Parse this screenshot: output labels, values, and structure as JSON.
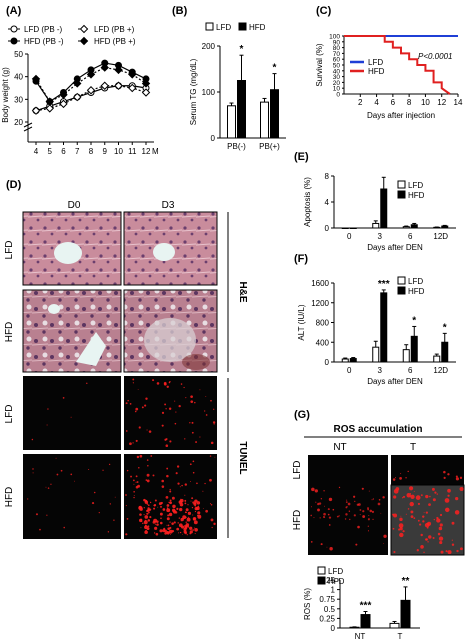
{
  "panels": {
    "A": {
      "label": "(A)"
    },
    "B": {
      "label": "(B)"
    },
    "C": {
      "label": "(C)"
    },
    "D": {
      "label": "(D)"
    },
    "E": {
      "label": "(E)"
    },
    "F": {
      "label": "(F)"
    },
    "G": {
      "label": "(G)"
    }
  },
  "micrographs": {
    "D": {
      "col_headers": [
        "D0",
        "D3"
      ],
      "row_labels": [
        "LFD",
        "HFD",
        "LFD",
        "HFD"
      ],
      "group_labels": [
        "H&E",
        "TUNEL"
      ]
    },
    "G": {
      "title": "ROS accumulation",
      "col_headers": [
        "NT",
        "T"
      ],
      "row_labels": [
        "LFD",
        "HFD"
      ]
    }
  },
  "colors": {
    "red": "#e02020",
    "blue": "#1f3fd6",
    "he_pink": "#c98c9c",
    "tunel_bg": "#050505",
    "tunel_red": "#ff2020"
  },
  "chart_data": [
    {
      "panel": "A",
      "type": "line",
      "xlabel": "M",
      "ylabel": "Body weight (g)",
      "x": [
        4,
        5,
        6,
        7,
        8,
        9,
        10,
        11,
        12
      ],
      "xticks": [
        "4",
        "5",
        "6",
        "7",
        "8",
        "9",
        "10",
        "11",
        "12"
      ],
      "yticks": [
        "20",
        "30",
        "40",
        "50"
      ],
      "ylim": [
        20,
        50
      ],
      "axis_break": true,
      "legend": {
        "position": "top",
        "entries": [
          "LFD (PB -)",
          "HFD (PB -)",
          "LFD (PB +)",
          "HFD (PB +)"
        ]
      },
      "series": [
        {
          "name": "LFD (PB -)",
          "values": [
            25,
            27,
            29,
            31,
            33,
            35,
            36,
            36,
            35
          ]
        },
        {
          "name": "HFD (PB -)",
          "values": [
            38,
            29,
            33,
            39,
            43,
            46,
            45,
            42,
            39
          ]
        },
        {
          "name": "LFD (PB +)",
          "values": [
            25,
            26,
            28,
            31,
            34,
            36,
            36,
            35,
            33
          ]
        },
        {
          "name": "HFD (PB +)",
          "values": [
            39,
            29,
            32,
            37,
            41,
            44,
            43,
            41,
            37
          ]
        }
      ]
    },
    {
      "panel": "B",
      "type": "bar",
      "ylabel": "Serum TG (mg/dL)",
      "categories": [
        "PB(-)",
        "PB(+)"
      ],
      "yticks": [
        "0",
        "100",
        "200"
      ],
      "ylim": [
        0,
        200
      ],
      "legend": {
        "position": "top",
        "entries": [
          "LFD",
          "HFD"
        ]
      },
      "series": [
        {
          "name": "LFD",
          "values": [
            70,
            78
          ],
          "errors": [
            6,
            8
          ]
        },
        {
          "name": "HFD",
          "values": [
            125,
            105
          ],
          "errors": [
            55,
            35
          ]
        }
      ],
      "annotations": [
        "*",
        "*"
      ]
    },
    {
      "panel": "C",
      "type": "line",
      "xlabel": "Days after injection",
      "ylabel": "Survival (%)",
      "xticks": [
        "2",
        "4",
        "6",
        "8",
        "10",
        "12",
        "14"
      ],
      "yticks": [
        "0",
        "10",
        "20",
        "30",
        "40",
        "50",
        "60",
        "70",
        "80",
        "90",
        "100"
      ],
      "xlim": [
        0,
        14
      ],
      "ylim": [
        0,
        100
      ],
      "annotation": "P<0.0001",
      "legend": {
        "position": "lower-left",
        "entries": [
          "LFD",
          "HFD"
        ]
      },
      "series": [
        {
          "name": "LFD",
          "x": [
            0,
            14
          ],
          "values": [
            100,
            100
          ]
        },
        {
          "name": "HFD",
          "x": [
            0,
            5,
            5,
            6,
            6,
            7,
            7,
            8,
            8,
            9,
            9,
            10,
            10,
            11,
            11,
            12,
            12,
            13
          ],
          "values": [
            100,
            100,
            90,
            90,
            80,
            80,
            70,
            70,
            60,
            60,
            50,
            50,
            40,
            40,
            20,
            20,
            10,
            0
          ]
        }
      ]
    },
    {
      "panel": "E",
      "type": "bar",
      "xlabel": "Days after DEN",
      "ylabel": "Apoptosis (%)",
      "categories": [
        "0",
        "3",
        "6",
        "12D"
      ],
      "yticks": [
        "0",
        "4",
        "8"
      ],
      "ylim": [
        0,
        8
      ],
      "legend": {
        "position": "top-right",
        "entries": [
          "LFD",
          "HFD"
        ]
      },
      "series": [
        {
          "name": "LFD",
          "values": [
            0,
            0.7,
            0.2,
            0.1
          ],
          "errors": [
            0,
            0.4,
            0.1,
            0.05
          ]
        },
        {
          "name": "HFD",
          "values": [
            0,
            6,
            0.5,
            0.3
          ],
          "errors": [
            0,
            1.8,
            0.2,
            0.1
          ]
        }
      ]
    },
    {
      "panel": "F",
      "type": "bar",
      "xlabel": "Days after DEN",
      "ylabel": "ALT (IU/L)",
      "categories": [
        "0",
        "3",
        "6",
        "12D"
      ],
      "yticks": [
        "0",
        "400",
        "800",
        "1200",
        "1600"
      ],
      "ylim": [
        0,
        1600
      ],
      "legend": {
        "position": "top-right",
        "entries": [
          "LFD",
          "HFD"
        ]
      },
      "series": [
        {
          "name": "LFD",
          "values": [
            60,
            300,
            250,
            120
          ],
          "errors": [
            20,
            120,
            100,
            40
          ]
        },
        {
          "name": "HFD",
          "values": [
            70,
            1400,
            520,
            400
          ],
          "errors": [
            20,
            60,
            200,
            180
          ]
        }
      ],
      "annotations": [
        "",
        "***",
        "*",
        "*"
      ]
    },
    {
      "panel": "G",
      "type": "bar",
      "ylabel": "ROS (%)",
      "categories": [
        "NT",
        "T"
      ],
      "yticks": [
        "0",
        "0.25",
        "0.5",
        "0.75",
        "1",
        "1.25"
      ],
      "ylim": [
        0,
        1.25
      ],
      "legend": {
        "position": "top-left",
        "entries": [
          "LFD",
          "HFD"
        ]
      },
      "series": [
        {
          "name": "LFD",
          "values": [
            0.02,
            0.12
          ],
          "errors": [
            0.01,
            0.05
          ]
        },
        {
          "name": "HFD",
          "values": [
            0.35,
            0.72
          ],
          "errors": [
            0.08,
            0.35
          ]
        }
      ],
      "annotations": [
        "***",
        "**"
      ]
    }
  ]
}
